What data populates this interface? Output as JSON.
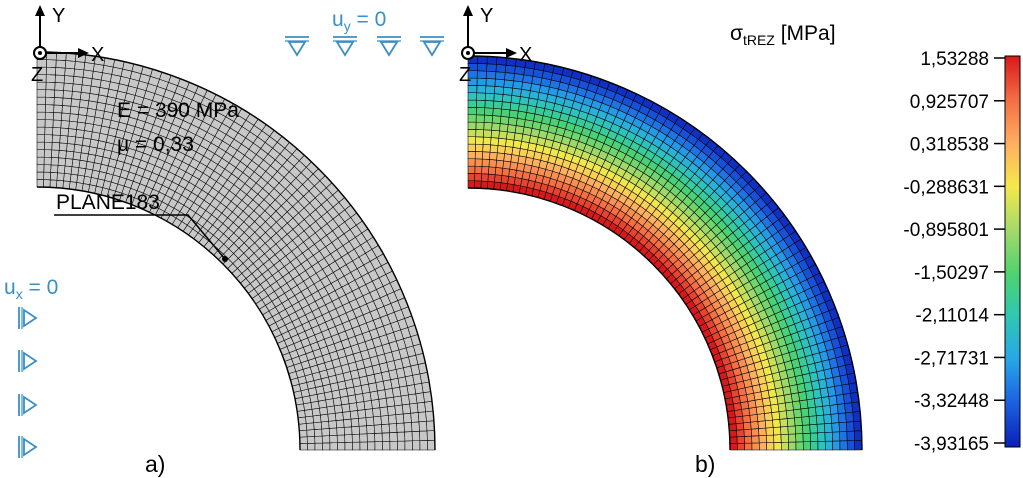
{
  "panel_a": {
    "axes": {
      "x": "X",
      "y": "Y",
      "z": "Z"
    },
    "bc_top": {
      "sym": "u",
      "sub": "y",
      "rest": " = 0"
    },
    "bc_left": {
      "sym": "u",
      "sub": "x",
      "rest": " = 0"
    },
    "material": {
      "modulus": "E = 390 MPa",
      "poisson": "μ = 0,33"
    },
    "element": "PLANE183",
    "label": "a)"
  },
  "panel_b": {
    "axes": {
      "x": "X",
      "y": "Y",
      "z": "Z"
    },
    "legend_title": {
      "sym": "σ",
      "sub": "tREZ",
      "rest": " [MPa]"
    },
    "label": "b)"
  },
  "colors": {
    "mesh_fill": "#c8c8c8",
    "mesh_line": "#000000",
    "bc_blue": "#3a8fc4"
  },
  "chart_data": {
    "type": "heatmap",
    "colorbar_ticks": [
      "1,53288",
      "0,925707",
      "0,318538",
      "-0,288631",
      "-0,895801",
      "-1,50297",
      "-2,11014",
      "-2,71731",
      "-3,32448",
      "-3,93165"
    ],
    "vmax": 1.53288,
    "vmin": -3.93165,
    "colormap": [
      "#d7191c",
      "#f46d43",
      "#fdae61",
      "#f6e84b",
      "#a6d96a",
      "#4ed36e",
      "#2fc7b3",
      "#26a6e8",
      "#1b5fe0",
      "#0a1fb8"
    ]
  }
}
